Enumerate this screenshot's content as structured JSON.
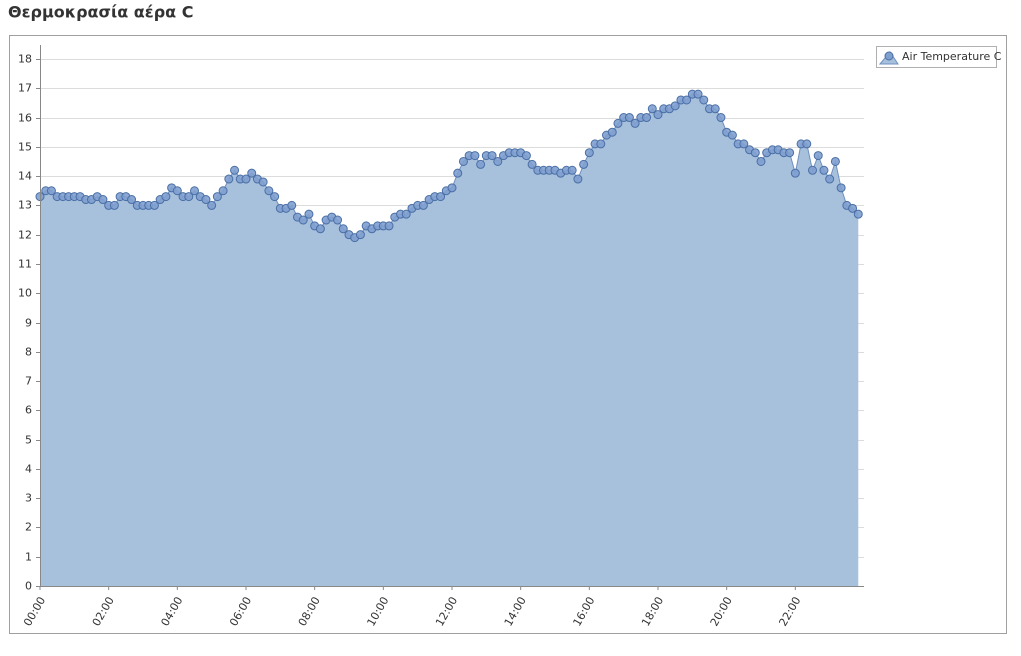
{
  "chart_data": {
    "type": "area",
    "title": "Θερμοκρασία αέρα C",
    "x": [
      0,
      10,
      20,
      30,
      40,
      50,
      60,
      70,
      80,
      90,
      100,
      110,
      120,
      130,
      140,
      150,
      160,
      170,
      180,
      190,
      200,
      210,
      220,
      230,
      240,
      250,
      260,
      270,
      280,
      290,
      300,
      310,
      320,
      330,
      340,
      350,
      360,
      370,
      380,
      390,
      400,
      410,
      420,
      430,
      440,
      450,
      460,
      470,
      480,
      490,
      500,
      510,
      520,
      530,
      540,
      550,
      560,
      570,
      580,
      590,
      600,
      610,
      620,
      630,
      640,
      650,
      660,
      670,
      680,
      690,
      700,
      710,
      720,
      730,
      740,
      750,
      760,
      770,
      780,
      790,
      800,
      810,
      820,
      830,
      840,
      850,
      860,
      870,
      880,
      890,
      900,
      910,
      920,
      930,
      940,
      950,
      960,
      970,
      980,
      990,
      1000,
      1010,
      1020,
      1030,
      1040,
      1050,
      1060,
      1070,
      1080,
      1090,
      1100,
      1110,
      1120,
      1130,
      1140,
      1150,
      1160,
      1170,
      1180,
      1190,
      1200,
      1210,
      1220,
      1230,
      1240,
      1250,
      1260,
      1270,
      1280,
      1290,
      1300,
      1310,
      1320,
      1330,
      1340,
      1350,
      1360,
      1370,
      1380,
      1390,
      1400,
      1410,
      1420,
      1430
    ],
    "series": [
      {
        "name": "Air Temperature C",
        "color": "#a7c0dc",
        "values": [
          13.3,
          13.5,
          13.5,
          13.3,
          13.3,
          13.3,
          13.3,
          13.3,
          13.2,
          13.2,
          13.3,
          13.2,
          13.0,
          13.0,
          13.3,
          13.3,
          13.2,
          13.0,
          13.0,
          13.0,
          13.0,
          13.2,
          13.3,
          13.6,
          13.5,
          13.3,
          13.3,
          13.5,
          13.3,
          13.2,
          13.0,
          13.3,
          13.5,
          13.9,
          14.2,
          13.9,
          13.9,
          14.1,
          13.9,
          13.8,
          13.5,
          13.3,
          12.9,
          12.9,
          13.0,
          12.6,
          12.5,
          12.7,
          12.3,
          12.2,
          12.5,
          12.6,
          12.5,
          12.2,
          12.0,
          11.9,
          12.0,
          12.3,
          12.2,
          12.3,
          12.3,
          12.3,
          12.6,
          12.7,
          12.7,
          12.9,
          13.0,
          13.0,
          13.2,
          13.3,
          13.3,
          13.5,
          13.6,
          14.1,
          14.5,
          14.7,
          14.7,
          14.4,
          14.7,
          14.7,
          14.5,
          14.7,
          14.8,
          14.8,
          14.8,
          14.7,
          14.4,
          14.2,
          14.2,
          14.2,
          14.2,
          14.1,
          14.2,
          14.2,
          13.9,
          14.4,
          14.8,
          15.1,
          15.1,
          15.4,
          15.5,
          15.8,
          16.0,
          16.0,
          15.8,
          16.0,
          16.0,
          16.3,
          16.1,
          16.3,
          16.3,
          16.4,
          16.6,
          16.6,
          16.8,
          16.8,
          16.6,
          16.3,
          16.3,
          16.0,
          15.5,
          15.4,
          15.1,
          15.1,
          14.9,
          14.8,
          14.5,
          14.8,
          14.9,
          14.9,
          14.8,
          14.8,
          14.1,
          15.1,
          15.1,
          14.2,
          14.7,
          14.2,
          13.9,
          14.5,
          13.6,
          13.0,
          12.9,
          12.7
        ]
      }
    ],
    "xlim": [
      0,
      1440
    ],
    "xticks": [
      {
        "value": 0,
        "label": "00:00"
      },
      {
        "value": 120,
        "label": "02:00"
      },
      {
        "value": 240,
        "label": "04:00"
      },
      {
        "value": 360,
        "label": "06:00"
      },
      {
        "value": 480,
        "label": "08:00"
      },
      {
        "value": 600,
        "label": "10:00"
      },
      {
        "value": 720,
        "label": "12:00"
      },
      {
        "value": 840,
        "label": "14:00"
      },
      {
        "value": 960,
        "label": "16:00"
      },
      {
        "value": 1080,
        "label": "18:00"
      },
      {
        "value": 1200,
        "label": "20:00"
      },
      {
        "value": 1320,
        "label": "22:00"
      }
    ],
    "ylim": [
      0,
      18
    ],
    "yticks": [
      0,
      1,
      2,
      3,
      4,
      5,
      6,
      7,
      8,
      9,
      10,
      11,
      12,
      13,
      14,
      15,
      16,
      17,
      18
    ],
    "grid": true,
    "legend": "right"
  }
}
